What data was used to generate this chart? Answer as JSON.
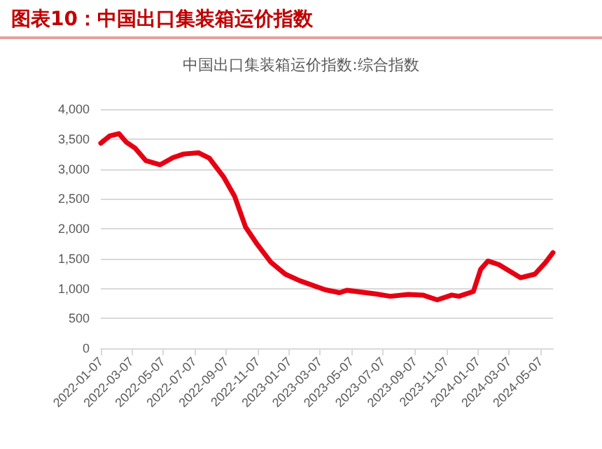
{
  "chart_data": {
    "type": "line",
    "title": "图表10：中国出口集装箱运价指数",
    "subtitle": "中国出口集装箱运价指数:综合指数",
    "x": [
      "2022-01-07",
      "2022-01-24",
      "2022-02-11",
      "2022-02-25",
      "2022-03-14",
      "2022-04-04",
      "2022-05-02",
      "2022-05-27",
      "2022-06-17",
      "2022-07-15",
      "2022-08-05",
      "2022-09-02",
      "2022-09-23",
      "2022-10-14",
      "2022-11-04",
      "2022-12-02",
      "2022-12-30",
      "2023-01-27",
      "2023-03-17",
      "2023-04-14",
      "2023-04-28",
      "2023-06-23",
      "2023-07-21",
      "2023-08-25",
      "2023-09-22",
      "2023-10-20",
      "2023-11-17",
      "2023-12-01",
      "2023-12-29",
      "2024-01-12",
      "2024-01-26",
      "2024-02-16",
      "2024-03-29",
      "2024-04-26",
      "2024-05-17",
      "2024-05-31"
    ],
    "series": [
      {
        "color": "#e60012",
        "values": [
          3430,
          3550,
          3590,
          3450,
          3350,
          3140,
          3070,
          3190,
          3250,
          3270,
          3180,
          2860,
          2540,
          2030,
          1760,
          1440,
          1240,
          1130,
          980,
          930,
          970,
          910,
          870,
          900,
          890,
          810,
          890,
          870,
          950,
          1320,
          1460,
          1400,
          1180,
          1240,
          1440,
          1600
        ]
      }
    ],
    "xlim": [
      "2022-01-07",
      "2024-05-31"
    ],
    "xticks": [
      "2022-01-07",
      "2022-03-07",
      "2022-05-07",
      "2022-07-07",
      "2022-09-07",
      "2022-11-07",
      "2023-01-07",
      "2023-03-07",
      "2023-05-07",
      "2023-07-07",
      "2023-09-07",
      "2023-11-07",
      "2024-01-07",
      "2024-03-07",
      "2024-05-07"
    ],
    "ylim": [
      0,
      4000
    ],
    "yticks": [
      {
        "value": 0,
        "label": "0"
      },
      {
        "value": 500,
        "label": "500"
      },
      {
        "value": 1000,
        "label": "1,000"
      },
      {
        "value": 1500,
        "label": "1,500"
      },
      {
        "value": 2000,
        "label": "2,000"
      },
      {
        "value": 2500,
        "label": "2,500"
      },
      {
        "value": 3000,
        "label": "3,000"
      },
      {
        "value": 3500,
        "label": "3,500"
      },
      {
        "value": 4000,
        "label": "4,000"
      }
    ],
    "grid": "y",
    "marker": "none",
    "line_style": "solid"
  }
}
